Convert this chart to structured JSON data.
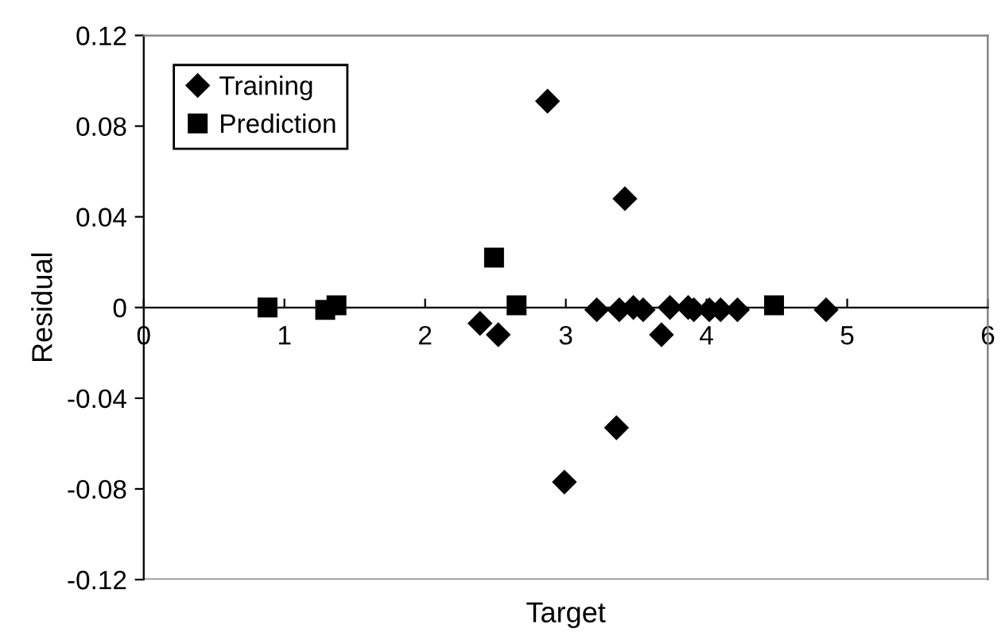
{
  "chart_data": {
    "type": "scatter",
    "xlabel": "Target",
    "ylabel": "Residual",
    "xlim": [
      0,
      6
    ],
    "xticks": [
      0,
      1,
      2,
      3,
      4,
      5,
      6
    ],
    "ylim": [
      -0.12,
      0.12
    ],
    "yticks": [
      0.12,
      0.08,
      0.04,
      0,
      -0.04,
      -0.08,
      -0.12
    ],
    "legend": "top left",
    "grid": false,
    "series": [
      {
        "name": "Training",
        "color": "#000000",
        "marker": "diamond",
        "x": [
          2.39,
          2.52,
          2.87,
          2.99,
          3.22,
          3.36,
          3.38,
          3.42,
          3.48,
          3.55,
          3.68,
          3.74,
          3.87,
          3.91,
          4.02,
          4.1,
          4.22,
          4.85
        ],
        "values": [
          -0.007,
          -0.012,
          0.091,
          -0.077,
          -0.001,
          -0.053,
          -0.001,
          0.048,
          0.0,
          -0.001,
          -0.012,
          0.0,
          0.0,
          -0.001,
          -0.001,
          -0.001,
          -0.001,
          -0.001
        ]
      },
      {
        "name": "Prediction",
        "color": "#000000",
        "marker": "square",
        "x": [
          0.88,
          1.29,
          1.37,
          2.49,
          2.65,
          4.48
        ],
        "values": [
          0.0,
          -0.001,
          0.001,
          0.022,
          0.001,
          0.001
        ]
      }
    ]
  }
}
